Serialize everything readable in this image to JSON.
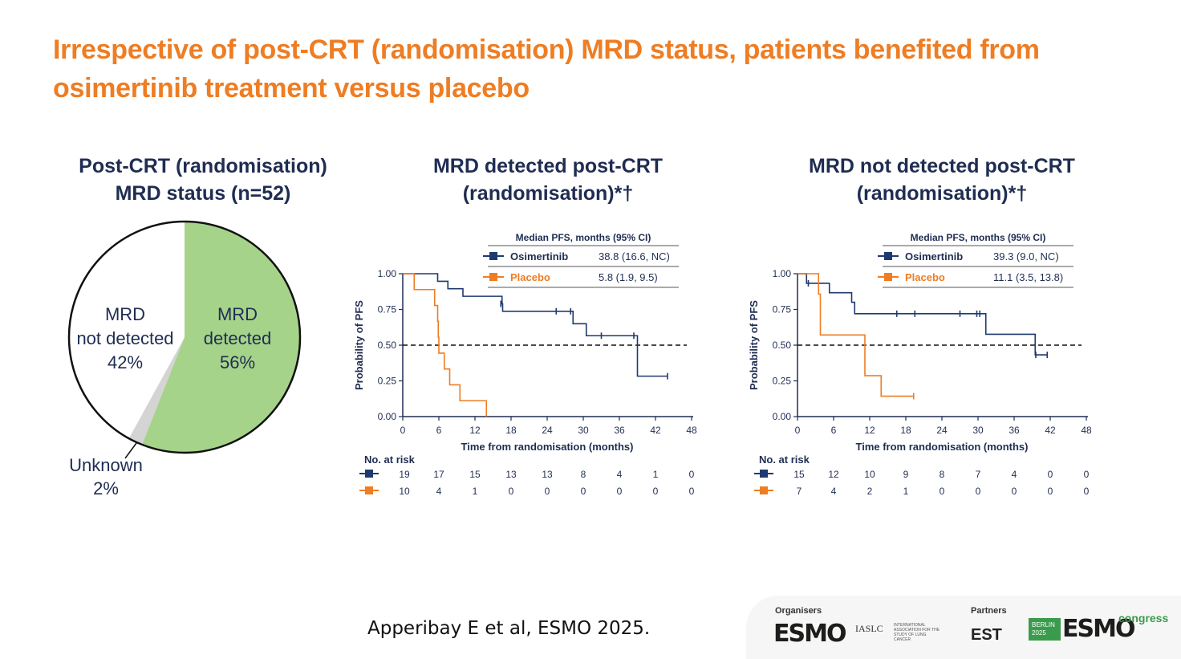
{
  "slide": {
    "title": "Irrespective of post-CRT (randomisation) MRD status, patients benefited from osimertinib treatment versus placebo",
    "citation": "Apperibay E et al, ESMO 2025."
  },
  "pie": {
    "title_line1": "Post-CRT (randomisation)",
    "title_line2": "MRD status (n=52)",
    "slices": [
      {
        "name": "MRD detected",
        "line1": "MRD",
        "line2": "detected",
        "pct_label": "56%",
        "value": 56,
        "color": "#a6d38a"
      },
      {
        "name": "Unknown",
        "line1": "Unknown",
        "line2": "",
        "pct_label": "2%",
        "value": 2,
        "color": "#d4d4d4"
      },
      {
        "name": "MRD not detected",
        "line1": "MRD",
        "line2": "not detected",
        "pct_label": "42%",
        "value": 42,
        "color": "#ffffff"
      }
    ]
  },
  "colors": {
    "osimertinib": "#1f3a6e",
    "placebo": "#ee7d23",
    "axis": "#1f2d52",
    "title_orange": "#ee7d23"
  },
  "km": {
    "ylabel": "Probability of PFS",
    "xlabel": "Time from randomisation (months)",
    "risk_title": "No. at risk",
    "median_header": "Median PFS, months (95% CI)",
    "xticks": [
      "0",
      "6",
      "12",
      "18",
      "24",
      "30",
      "36",
      "42",
      "48"
    ],
    "yticks": [
      "0.00",
      "0.25",
      "0.50",
      "0.75",
      "1.00"
    ]
  },
  "chart_data": [
    {
      "type": "pie",
      "title": "Post-CRT (randomisation) MRD status (n=52)",
      "categories": [
        "MRD detected",
        "Unknown",
        "MRD not detected"
      ],
      "values": [
        56,
        2,
        42
      ]
    },
    {
      "type": "line",
      "subtype": "kaplan-meier",
      "title_line1": "MRD detected post-CRT",
      "title_line2": "(randomisation)*†",
      "xlabel": "Time from randomisation (months)",
      "ylabel": "Probability of PFS",
      "xlim": [
        0,
        48
      ],
      "ylim": [
        0,
        1
      ],
      "reference_line": 0.5,
      "legend": [
        {
          "name": "Osimertinib",
          "median": "38.8 (16.6, NC)"
        },
        {
          "name": "Placebo",
          "median": "5.8 (1.9, 9.5)"
        }
      ],
      "series": [
        {
          "name": "Osimertinib",
          "color": "#1f3a6e",
          "steps": [
            [
              0,
              1.0
            ],
            [
              5.8,
              0.947
            ],
            [
              7.5,
              0.895
            ],
            [
              10,
              0.842
            ],
            [
              16.5,
              0.789
            ],
            [
              16.6,
              0.737
            ],
            [
              27.5,
              0.737
            ],
            [
              28.3,
              0.65
            ],
            [
              30.5,
              0.566
            ],
            [
              38.8,
              0.566
            ],
            [
              39,
              0.283
            ],
            [
              44,
              0.283
            ]
          ],
          "censors": [
            [
              16.3,
              0.789
            ],
            [
              25.5,
              0.737
            ],
            [
              27.9,
              0.737
            ],
            [
              33,
              0.566
            ],
            [
              38.4,
              0.566
            ],
            [
              44,
              0.283
            ]
          ]
        },
        {
          "name": "Placebo",
          "color": "#ee7d23",
          "steps": [
            [
              0,
              1.0
            ],
            [
              1.9,
              0.889
            ],
            [
              5.3,
              0.778
            ],
            [
              5.8,
              0.667
            ],
            [
              5.9,
              0.556
            ],
            [
              6.0,
              0.444
            ],
            [
              6.9,
              0.333
            ],
            [
              7.8,
              0.222
            ],
            [
              9.5,
              0.111
            ],
            [
              13.9,
              0.0
            ]
          ],
          "censors": []
        }
      ],
      "at_risk": {
        "times": [
          0,
          6,
          12,
          18,
          24,
          30,
          36,
          42,
          48
        ],
        "Osimertinib": [
          "19",
          "17",
          "15",
          "13",
          "13",
          "8",
          "4",
          "1",
          "0"
        ],
        "Placebo": [
          "10",
          "4",
          "1",
          "0",
          "0",
          "0",
          "0",
          "0",
          "0"
        ]
      }
    },
    {
      "type": "line",
      "subtype": "kaplan-meier",
      "title_line1": "MRD not detected post-CRT",
      "title_line2": "(randomisation)*†",
      "xlabel": "Time from randomisation (months)",
      "ylabel": "Probability of PFS",
      "xlim": [
        0,
        48
      ],
      "ylim": [
        0,
        1
      ],
      "reference_line": 0.5,
      "legend": [
        {
          "name": "Osimertinib",
          "median": "39.3 (9.0, NC)"
        },
        {
          "name": "Placebo",
          "median": "11.1 (3.5, 13.8)"
        }
      ],
      "series": [
        {
          "name": "Osimertinib",
          "color": "#1f3a6e",
          "steps": [
            [
              0,
              1.0
            ],
            [
              1.5,
              0.933
            ],
            [
              5.3,
              0.867
            ],
            [
              9.0,
              0.8
            ],
            [
              9.5,
              0.72
            ],
            [
              31.0,
              0.72
            ],
            [
              31.3,
              0.576
            ],
            [
              39.3,
              0.576
            ],
            [
              39.5,
              0.432
            ],
            [
              41.5,
              0.432
            ]
          ],
          "censors": [
            [
              1.8,
              0.933
            ],
            [
              16.5,
              0.72
            ],
            [
              19.5,
              0.72
            ],
            [
              27,
              0.72
            ],
            [
              29.8,
              0.72
            ],
            [
              30.3,
              0.72
            ],
            [
              39.6,
              0.432
            ],
            [
              41.5,
              0.432
            ]
          ]
        },
        {
          "name": "Placebo",
          "color": "#ee7d23",
          "steps": [
            [
              0,
              1.0
            ],
            [
              3.5,
              0.857
            ],
            [
              3.8,
              0.571
            ],
            [
              11.1,
              0.571
            ],
            [
              11.2,
              0.286
            ],
            [
              13.8,
              0.286
            ],
            [
              13.9,
              0.143
            ],
            [
              19.3,
              0.143
            ]
          ],
          "censors": [
            [
              19.3,
              0.143
            ]
          ]
        }
      ],
      "at_risk": {
        "times": [
          0,
          6,
          12,
          18,
          24,
          30,
          36,
          42,
          48
        ],
        "Osimertinib": [
          "15",
          "12",
          "10",
          "9",
          "8",
          "7",
          "4",
          "0",
          "0"
        ],
        "Placebo": [
          "7",
          "4",
          "2",
          "1",
          "0",
          "0",
          "0",
          "0",
          "0"
        ]
      }
    }
  ],
  "footer": {
    "organisers_label": "Organisers",
    "partners_label": "Partners",
    "esmo_text": "ESMO",
    "iaslc_text": "IASLC",
    "iaslc_sub": "INTERNATIONAL ASSOCIATION FOR THE STUDY OF LUNG CANCER",
    "est_text": "EST",
    "berlin_text": "BERLIN 2025",
    "congress_text": "congress"
  }
}
